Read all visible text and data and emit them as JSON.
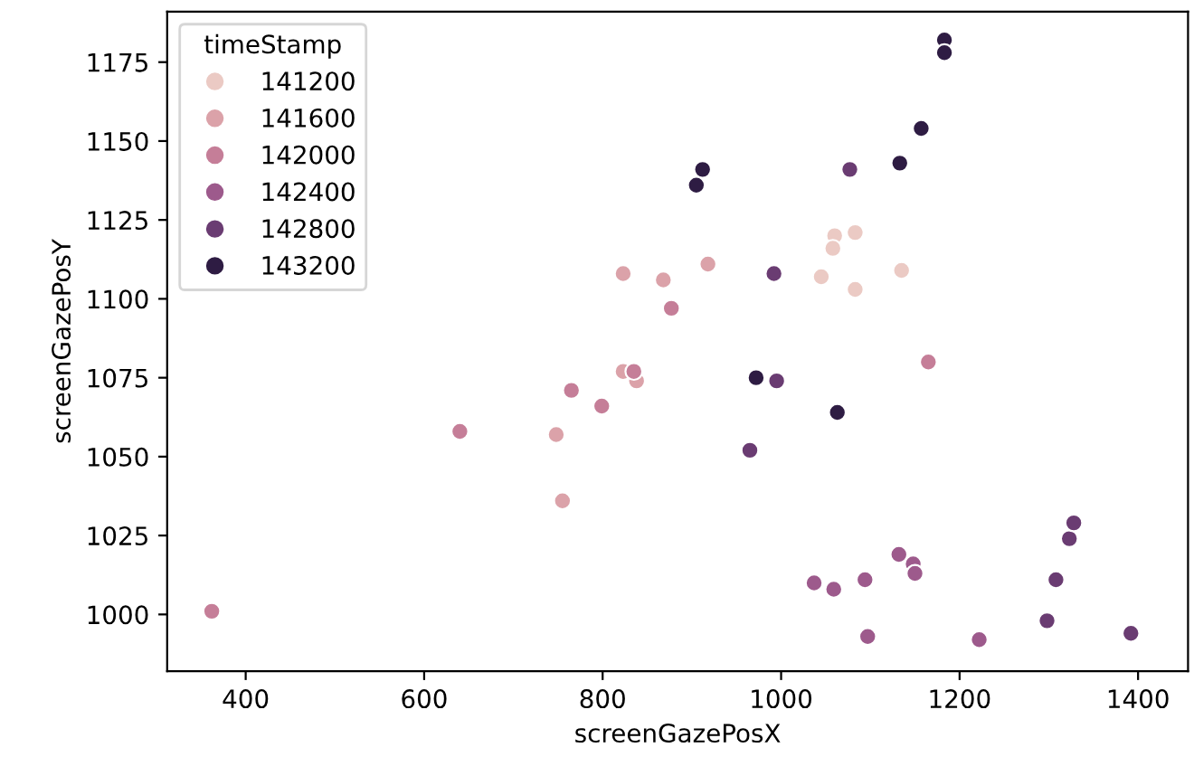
{
  "chart_data": {
    "type": "scatter",
    "xlabel": "screenGazePosX",
    "ylabel": "screenGazePosY",
    "legend_title": "timeStamp",
    "legend": "top left",
    "marker": "circle",
    "grid": false,
    "xlim": [
      312,
      1456
    ],
    "ylim": [
      982,
      1191
    ],
    "xticks": [
      400,
      600,
      800,
      1000,
      1200,
      1400
    ],
    "yticks": [
      1000,
      1025,
      1050,
      1075,
      1100,
      1125,
      1150,
      1175
    ],
    "series": [
      {
        "name": "141200",
        "color": "#ebcac4",
        "x": [
          1060,
          1058,
          1083,
          1045,
          1083,
          1135
        ],
        "values": [
          1120,
          1116,
          1121,
          1107,
          1103,
          1109
        ]
      },
      {
        "name": "141600",
        "color": "#dba2a9",
        "x": [
          823,
          918,
          868,
          838,
          823,
          748,
          755
        ],
        "values": [
          1108,
          1111,
          1106,
          1074,
          1077,
          1057,
          1036
        ]
      },
      {
        "name": "142000",
        "color": "#c57e98",
        "x": [
          877,
          835,
          799,
          765,
          640,
          362,
          1165
        ],
        "values": [
          1097,
          1077,
          1066,
          1071,
          1058,
          1001,
          1080
        ]
      },
      {
        "name": "142400",
        "color": "#9d5a8c",
        "x": [
          1037,
          1059,
          1094,
          1132,
          1148,
          1150,
          1097,
          1222
        ],
        "values": [
          1010,
          1008,
          1011,
          1019,
          1016,
          1013,
          993,
          992
        ]
      },
      {
        "name": "142800",
        "color": "#6a3c72",
        "x": [
          1298,
          1308,
          1323,
          1328,
          1392,
          1077,
          965,
          995,
          992
        ],
        "values": [
          998,
          1011,
          1024,
          1029,
          994,
          1141,
          1052,
          1074,
          1108
        ]
      },
      {
        "name": "143200",
        "color": "#2e1c43",
        "x": [
          1183,
          1183,
          1157,
          1133,
          912,
          905,
          972,
          1063
        ],
        "values": [
          1182,
          1178,
          1154,
          1143,
          1141,
          1136,
          1075,
          1064
        ]
      }
    ]
  }
}
